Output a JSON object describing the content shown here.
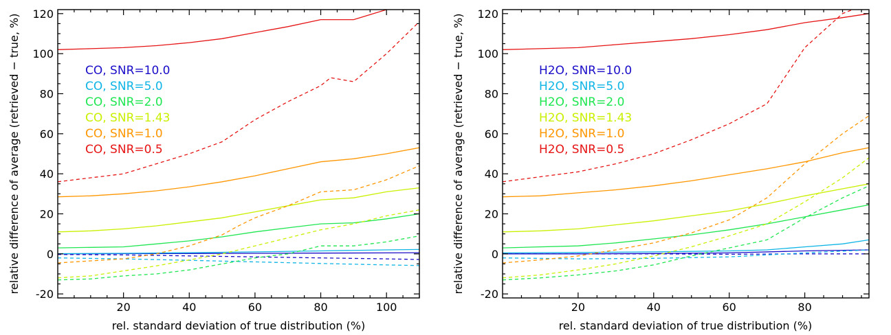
{
  "chart_data": [
    {
      "type": "line",
      "title": "",
      "xlabel": "rel. standard deviation of true distribution (%)",
      "ylabel": "relative difference of average (retrieved − true, %)",
      "xlim": [
        0,
        110
      ],
      "ylim": [
        -22,
        122
      ],
      "xticks": [
        20,
        40,
        60,
        80,
        100
      ],
      "yticks": [
        -20,
        0,
        20,
        40,
        60,
        80,
        100,
        120
      ],
      "grid": false,
      "legend_position": "upper-left",
      "series": [
        {
          "name": "CO, SNR=10.0",
          "color": "#1a0dc8",
          "solid": {
            "x": [
              0,
              20,
              40,
              60,
              80,
              100,
              110
            ],
            "y": [
              0,
              0.1,
              0.2,
              0.3,
              0.4,
              0.5,
              0.6
            ]
          },
          "dashed": {
            "x": [
              0,
              20,
              40,
              60,
              80,
              100,
              110
            ],
            "y": [
              -0.3,
              -0.5,
              -1,
              -1.5,
              -2,
              -2.5,
              -2.8
            ]
          }
        },
        {
          "name": "CO, SNR=5.0",
          "color": "#0fb4e6",
          "solid": {
            "x": [
              0,
              20,
              40,
              60,
              80,
              100,
              110
            ],
            "y": [
              0.1,
              0.3,
              0.6,
              1,
              1.5,
              2,
              2.2
            ]
          },
          "dashed": {
            "x": [
              0,
              20,
              40,
              60,
              80,
              100,
              110
            ],
            "y": [
              -2,
              -2.5,
              -3.2,
              -4,
              -4.8,
              -5.5,
              -5.8
            ]
          }
        },
        {
          "name": "CO, SNR=2.0",
          "color": "#1ee650",
          "solid": {
            "x": [
              0,
              20,
              30,
              40,
              50,
              60,
              70,
              80,
              90,
              100,
              110
            ],
            "y": [
              3,
              3.5,
              5,
              6.5,
              8.5,
              11,
              13,
              15,
              15.5,
              17.5,
              20
            ]
          },
          "dashed": {
            "x": [
              0,
              10,
              20,
              30,
              40,
              50,
              60,
              70,
              80,
              90,
              100,
              110
            ],
            "y": [
              -13,
              -12.5,
              -11,
              -10,
              -8,
              -5,
              -2,
              0,
              4,
              4,
              6,
              9
            ]
          }
        },
        {
          "name": "CO, SNR=1.43",
          "color": "#c8f000",
          "solid": {
            "x": [
              0,
              10,
              20,
              30,
              40,
              50,
              60,
              70,
              80,
              90,
              100,
              110
            ],
            "y": [
              11,
              11.5,
              12.5,
              14,
              16,
              18,
              21,
              24,
              27,
              28,
              31,
              33
            ]
          },
          "dashed": {
            "x": [
              0,
              10,
              20,
              30,
              40,
              50,
              60,
              70,
              80,
              90,
              100,
              110
            ],
            "y": [
              -12,
              -11,
              -8.5,
              -6,
              -3,
              0,
              4,
              8,
              12,
              15,
              19,
              22
            ]
          }
        },
        {
          "name": "CO, SNR=1.0",
          "color": "#ff9600",
          "solid": {
            "x": [
              0,
              10,
              20,
              30,
              40,
              50,
              60,
              70,
              80,
              90,
              100,
              110
            ],
            "y": [
              28.5,
              29,
              30,
              31.5,
              33.5,
              36,
              39,
              42.5,
              46,
              47.5,
              50,
              53
            ]
          },
          "dashed": {
            "x": [
              0,
              10,
              20,
              30,
              40,
              50,
              55,
              60,
              70,
              80,
              90,
              100,
              110
            ],
            "y": [
              -4.5,
              -3.5,
              -2.5,
              0,
              4,
              9.5,
              14,
              18,
              24,
              31,
              32,
              37,
              44
            ]
          }
        },
        {
          "name": "CO, SNR=0.5",
          "color": "#e61414",
          "solid": {
            "x": [
              0,
              10,
              20,
              30,
              40,
              50,
              60,
              70,
              80,
              90,
              100,
              105,
              110
            ],
            "y": [
              102,
              102.5,
              103,
              104,
              105.5,
              107.5,
              110.5,
              113.5,
              117,
              117,
              122,
              123,
              123
            ]
          },
          "dashed": {
            "x": [
              0,
              10,
              20,
              30,
              40,
              50,
              60,
              70,
              80,
              83,
              90,
              100,
              110
            ],
            "y": [
              36,
              38,
              40,
              45,
              50,
              56,
              67,
              76,
              84,
              88,
              86,
              100,
              116
            ]
          }
        }
      ]
    },
    {
      "type": "line",
      "title": "",
      "xlabel": "rel. standard deviation of true distribution (%)",
      "ylabel": "relative difference of average (retrieved − true, %)",
      "xlim": [
        0,
        97
      ],
      "ylim": [
        -22,
        122
      ],
      "xticks": [
        20,
        40,
        60,
        80
      ],
      "yticks": [
        -20,
        0,
        20,
        40,
        60,
        80,
        100,
        120
      ],
      "grid": false,
      "legend_position": "upper-left",
      "series": [
        {
          "name": "H2O, SNR=10.0",
          "color": "#1a0dc8",
          "solid": {
            "x": [
              0,
              20,
              40,
              60,
              80,
              97
            ],
            "y": [
              0,
              0,
              0.2,
              0.5,
              1.5,
              2
            ]
          },
          "dashed": {
            "x": [
              0,
              20,
              40,
              60,
              80,
              97
            ],
            "y": [
              0,
              0,
              0,
              -0.2,
              0,
              0
            ]
          }
        },
        {
          "name": "H2O, SNR=5.0",
          "color": "#0fb4e6",
          "solid": {
            "x": [
              0,
              20,
              40,
              60,
              70,
              80,
              90,
              97
            ],
            "y": [
              0.5,
              0.7,
              1,
              1.5,
              2,
              3.5,
              5,
              7
            ]
          },
          "dashed": {
            "x": [
              0,
              20,
              40,
              60,
              80,
              97
            ],
            "y": [
              -2,
              -2.5,
              -2.2,
              -1.5,
              0.5,
              2
            ]
          }
        },
        {
          "name": "H2O, SNR=2.0",
          "color": "#1ee650",
          "solid": {
            "x": [
              0,
              20,
              30,
              40,
              50,
              60,
              70,
              80,
              90,
              97
            ],
            "y": [
              3,
              4,
              5.5,
              7.5,
              9.5,
              12,
              15,
              18.5,
              22,
              24.5
            ]
          },
          "dashed": {
            "x": [
              0,
              10,
              20,
              30,
              40,
              50,
              60,
              70,
              80,
              90,
              97
            ],
            "y": [
              -13,
              -12,
              -10.5,
              -8.5,
              -5.5,
              -1,
              3,
              7,
              18,
              28,
              34
            ]
          }
        },
        {
          "name": "H2O, SNR=1.43",
          "color": "#c8f000",
          "solid": {
            "x": [
              0,
              10,
              20,
              30,
              40,
              50,
              60,
              70,
              80,
              90,
              97
            ],
            "y": [
              11,
              11.5,
              12.5,
              14.5,
              16.5,
              19,
              21.5,
              25,
              29,
              32.5,
              35
            ]
          },
          "dashed": {
            "x": [
              0,
              10,
              20,
              30,
              40,
              50,
              60,
              70,
              80,
              90,
              97
            ],
            "y": [
              -12,
              -10.5,
              -8,
              -5,
              -1,
              3.5,
              9,
              15,
              26,
              38,
              48
            ]
          }
        },
        {
          "name": "H2O, SNR=1.0",
          "color": "#ff9600",
          "solid": {
            "x": [
              0,
              10,
              20,
              30,
              40,
              50,
              60,
              70,
              80,
              90,
              97
            ],
            "y": [
              28.5,
              29,
              30.5,
              32,
              34,
              36.5,
              39.5,
              42.5,
              46,
              50.5,
              53
            ]
          },
          "dashed": {
            "x": [
              0,
              10,
              20,
              30,
              40,
              50,
              60,
              70,
              80,
              90,
              97
            ],
            "y": [
              -4.5,
              -3,
              -1,
              2,
              5.5,
              10.5,
              17,
              28,
              45,
              60,
              69
            ]
          }
        },
        {
          "name": "H2O, SNR=0.5",
          "color": "#e61414",
          "solid": {
            "x": [
              0,
              10,
              20,
              30,
              40,
              50,
              60,
              70,
              80,
              90,
              97
            ],
            "y": [
              102,
              102.5,
              103,
              104.5,
              106,
              107.5,
              109.5,
              112,
              115.5,
              118,
              120
            ]
          },
          "dashed": {
            "x": [
              0,
              10,
              20,
              30,
              40,
              50,
              60,
              70,
              80,
              90,
              94
            ],
            "y": [
              36,
              38.5,
              41,
              45,
              50,
              57,
              65,
              75,
              103,
              120,
              123
            ]
          }
        }
      ]
    }
  ]
}
